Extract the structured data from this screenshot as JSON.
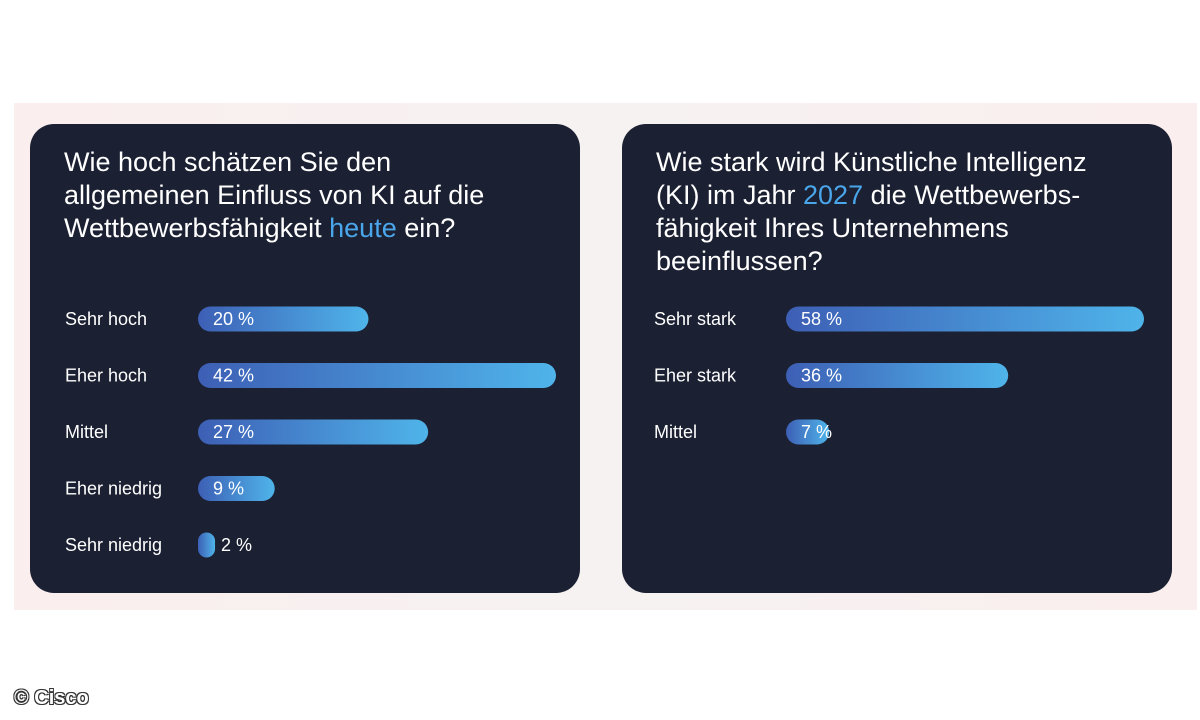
{
  "charts": [
    {
      "question_before": "Wie hoch schätzen Sie den allgemeinen Einfluss von KI auf die Wettbewerbsfähigkeit ",
      "question_highlight": "heute",
      "question_after": " ein?"
    },
    {
      "question_before": "Wie stark wird Künstliche Intelligenz (KI) im Jahr ",
      "question_highlight": "2027",
      "question_after": " die Wettbewerbs-fähigkeit Ihres Unternehmens beeinflussen?"
    }
  ],
  "chart_data": [
    {
      "type": "bar",
      "orientation": "horizontal",
      "title": "Wie hoch schätzen Sie den allgemeinen Einfluss von KI auf die Wettbewerbsfähigkeit heute ein?",
      "categories": [
        "Sehr hoch",
        "Eher hoch",
        "Mittel",
        "Eher niedrig",
        "Sehr niedrig"
      ],
      "values": [
        20,
        42,
        27,
        9,
        2
      ],
      "value_labels": [
        "20 %",
        "42 %",
        "27 %",
        "9 %",
        "2 %"
      ],
      "xlim": [
        0,
        42
      ]
    },
    {
      "type": "bar",
      "orientation": "horizontal",
      "title": "Wie stark wird Künstliche Intelligenz (KI) im Jahr 2027 die Wettbewerbsfähigkeit Ihres Unternehmens beeinflussen?",
      "categories": [
        "Sehr stark",
        "Eher stark",
        "Mittel"
      ],
      "values": [
        58,
        36,
        7
      ],
      "value_labels": [
        "58 %",
        "36 %",
        "7 %"
      ],
      "xlim": [
        0,
        58
      ]
    }
  ],
  "colors": {
    "card_bg": "#1b2032",
    "highlight": "#4aa6ea",
    "bar_start": "#3d5fb5",
    "bar_end": "#4fb4ea"
  },
  "copyright": "© Cisco"
}
